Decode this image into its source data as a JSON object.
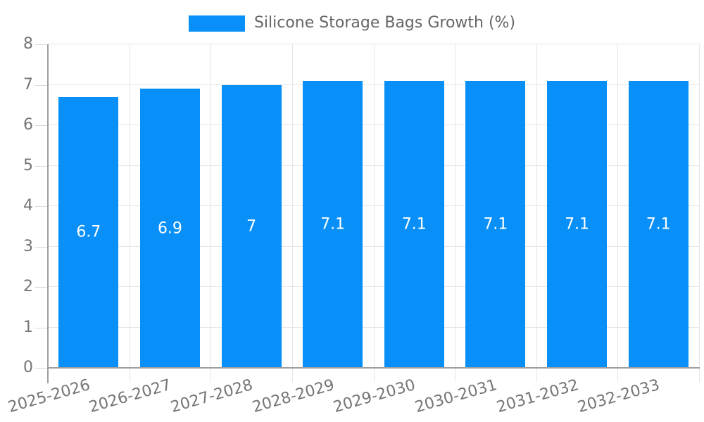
{
  "chart_data": {
    "type": "bar",
    "categories": [
      "2025-2026",
      "2026-2027",
      "2027-2028",
      "2028-2029",
      "2029-2030",
      "2030-2031",
      "2031-2032",
      "2032-2033"
    ],
    "values": [
      6.7,
      6.9,
      7,
      7.1,
      7.1,
      7.1,
      7.1,
      7.1
    ],
    "value_labels": [
      "6.7",
      "6.9",
      "7",
      "7.1",
      "7.1",
      "7.1",
      "7.1",
      "7.1"
    ],
    "legend_label": "Silicone Storage Bags Growth (%)",
    "title": "",
    "xlabel": "",
    "ylabel": "",
    "ylim": [
      0,
      8
    ],
    "yticks": [
      0,
      1,
      2,
      3,
      4,
      5,
      6,
      7,
      8
    ],
    "grid": true,
    "legend_position": "top-center",
    "x_label_rotation_deg": -16
  },
  "colors": {
    "bar": "#0890F8",
    "grid": "#e6e6e6",
    "axis": "#9f9f9f",
    "tick": "#d9d9d9",
    "axis_label": "#757575",
    "legend_text": "#666666",
    "value_label": "#ffffff",
    "background": "#ffffff"
  }
}
